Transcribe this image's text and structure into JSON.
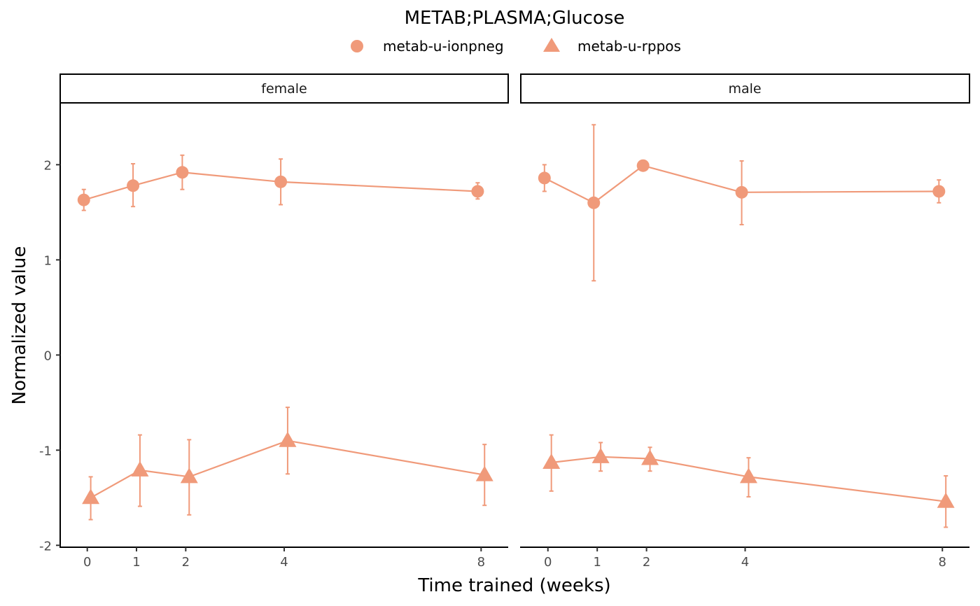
{
  "chart_data": {
    "type": "line",
    "title": "METAB;PLASMA;Glucose",
    "xlabel": "Time trained (weeks)",
    "ylabel": "Normalized value",
    "x_ticks": [
      0,
      1,
      2,
      4,
      8
    ],
    "y_ticks": [
      -2,
      -1,
      0,
      1,
      2
    ],
    "ylim": [
      -2.02,
      2.65
    ],
    "xlim": [
      -0.55,
      8.55
    ],
    "grid": false,
    "legend_position": "top",
    "color": "#f09a7a",
    "series_legend": [
      {
        "name": "metab-u-ionpneg",
        "shape": "circle"
      },
      {
        "name": "metab-u-rppos",
        "shape": "triangle"
      }
    ],
    "panels": [
      {
        "label": "female",
        "series": [
          {
            "name": "metab-u-ionpneg",
            "shape": "circle",
            "dodge": -0.07,
            "points": [
              {
                "x": 0,
                "y": 1.63,
                "lo": 1.52,
                "hi": 1.74
              },
              {
                "x": 1,
                "y": 1.78,
                "lo": 1.56,
                "hi": 2.01
              },
              {
                "x": 2,
                "y": 1.92,
                "lo": 1.74,
                "hi": 2.1
              },
              {
                "x": 4,
                "y": 1.82,
                "lo": 1.58,
                "hi": 2.06
              },
              {
                "x": 8,
                "y": 1.72,
                "lo": 1.64,
                "hi": 1.81
              }
            ]
          },
          {
            "name": "metab-u-rppos",
            "shape": "triangle",
            "dodge": 0.07,
            "points": [
              {
                "x": 0,
                "y": -1.5,
                "lo": -1.73,
                "hi": -1.28
              },
              {
                "x": 1,
                "y": -1.21,
                "lo": -1.59,
                "hi": -0.84
              },
              {
                "x": 2,
                "y": -1.28,
                "lo": -1.68,
                "hi": -0.89
              },
              {
                "x": 4,
                "y": -0.9,
                "lo": -1.25,
                "hi": -0.55
              },
              {
                "x": 8,
                "y": -1.26,
                "lo": -1.58,
                "hi": -0.94
              }
            ]
          }
        ]
      },
      {
        "label": "male",
        "series": [
          {
            "name": "metab-u-ionpneg",
            "shape": "circle",
            "dodge": -0.07,
            "points": [
              {
                "x": 0,
                "y": 1.86,
                "lo": 1.72,
                "hi": 2.0
              },
              {
                "x": 1,
                "y": 1.6,
                "lo": 0.78,
                "hi": 2.42
              },
              {
                "x": 2,
                "y": 1.99,
                "lo": 1.99,
                "hi": 1.99
              },
              {
                "x": 4,
                "y": 1.71,
                "lo": 1.37,
                "hi": 2.04
              },
              {
                "x": 8,
                "y": 1.72,
                "lo": 1.6,
                "hi": 1.84
              }
            ]
          },
          {
            "name": "metab-u-rppos",
            "shape": "triangle",
            "dodge": 0.07,
            "points": [
              {
                "x": 0,
                "y": -1.13,
                "lo": -1.43,
                "hi": -0.84
              },
              {
                "x": 1,
                "y": -1.07,
                "lo": -1.22,
                "hi": -0.92
              },
              {
                "x": 2,
                "y": -1.09,
                "lo": -1.22,
                "hi": -0.97
              },
              {
                "x": 4,
                "y": -1.28,
                "lo": -1.49,
                "hi": -1.08
              },
              {
                "x": 8,
                "y": -1.54,
                "lo": -1.81,
                "hi": -1.27
              }
            ]
          }
        ]
      }
    ]
  }
}
